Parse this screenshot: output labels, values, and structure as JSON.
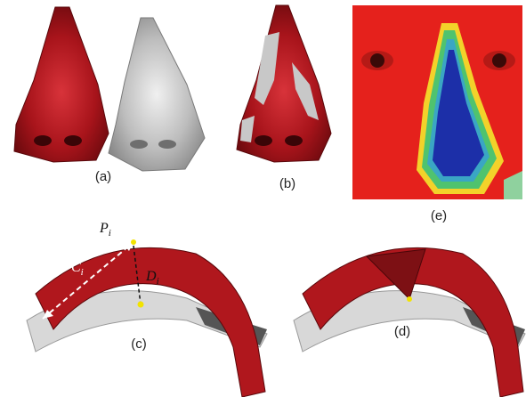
{
  "captions": {
    "a": "(a)",
    "b": "(b)",
    "c": "(c)",
    "d": "(d)",
    "e": "(e)"
  },
  "annotations": {
    "p_main": "P",
    "p_sub": "i",
    "c_main": "C",
    "c_sub": "i",
    "d_main": "D",
    "d_sub": "i"
  },
  "colors": {
    "nose_red": "#a8141b",
    "nose_gray": "#bdbdbd",
    "heatmap_red": "#e5211c",
    "heatmap_blue": "#1c2fa8",
    "surface_gray": "#d8d8d8",
    "marker_yellow": "#f2e300"
  }
}
